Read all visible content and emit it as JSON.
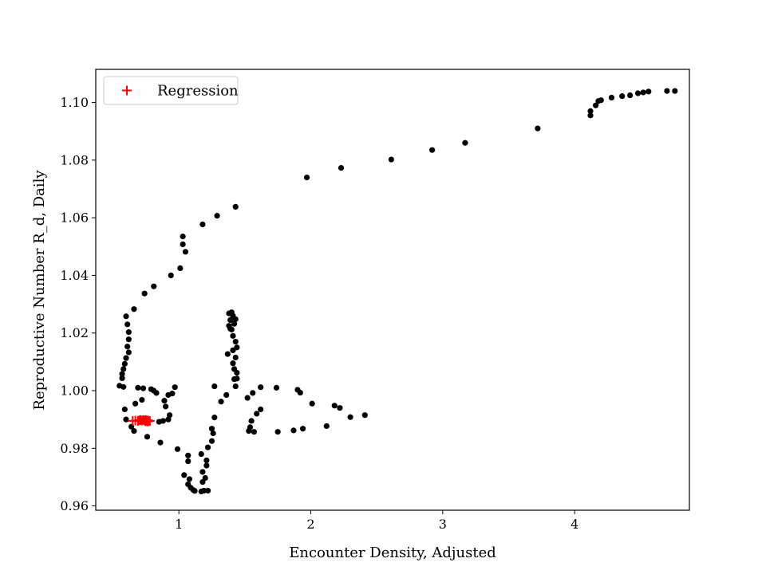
{
  "chart_data": {
    "type": "scatter",
    "title": "",
    "xlabel": "Encounter Density, Adjusted",
    "ylabel": "Reproductive Number R_d, Daily",
    "xlim": [
      0.37,
      4.87
    ],
    "ylim": [
      0.9585,
      1.1115
    ],
    "xticks": [
      1,
      2,
      3,
      4
    ],
    "yticks": [
      0.96,
      0.98,
      1.0,
      1.02,
      1.04,
      1.06,
      1.08,
      1.1
    ],
    "ytick_format": 2,
    "grid": false,
    "legend": {
      "position": "top-left",
      "entries": [
        {
          "label": "Regression",
          "marker": "plus",
          "color": "#ff0000"
        }
      ]
    },
    "series": [
      {
        "marker": "dot",
        "color": "#000000",
        "points": [
          [
            4.76,
            1.104
          ],
          [
            4.7,
            1.104
          ],
          [
            4.56,
            1.1038
          ],
          [
            4.52,
            1.1035
          ],
          [
            4.48,
            1.1032
          ],
          [
            4.42,
            1.1025
          ],
          [
            4.36,
            1.1022
          ],
          [
            4.28,
            1.1017
          ],
          [
            4.2,
            1.1008
          ],
          [
            4.18,
            1.1005
          ],
          [
            4.16,
            1.099
          ],
          [
            4.12,
            1.097
          ],
          [
            4.12,
            1.0955
          ],
          [
            3.72,
            1.091
          ],
          [
            3.17,
            1.086
          ],
          [
            2.92,
            1.0835
          ],
          [
            2.61,
            1.0802
          ],
          [
            2.23,
            1.0773
          ],
          [
            1.97,
            1.074
          ],
          [
            1.43,
            1.0638
          ],
          [
            1.29,
            1.0607
          ],
          [
            1.18,
            1.0577
          ],
          [
            1.03,
            1.0535
          ],
          [
            1.03,
            1.0508
          ],
          [
            1.05,
            1.0482
          ],
          [
            1.01,
            1.0425
          ],
          [
            0.94,
            1.04
          ],
          [
            0.81,
            1.0362
          ],
          [
            0.74,
            1.0337
          ],
          [
            0.66,
            1.0283
          ],
          [
            0.6,
            1.0258
          ],
          [
            0.61,
            1.023
          ],
          [
            0.62,
            1.0203
          ],
          [
            0.62,
            1.0178
          ],
          [
            0.61,
            1.0153
          ],
          [
            0.62,
            1.0133
          ],
          [
            0.6,
            1.0113
          ],
          [
            0.59,
            1.0093
          ],
          [
            0.58,
            1.0075
          ],
          [
            0.57,
            1.0058
          ],
          [
            0.57,
            1.0043
          ],
          [
            0.55,
            1.0017
          ],
          [
            0.58,
            1.0013
          ],
          [
            0.59,
            0.9935
          ],
          [
            0.6,
            0.99
          ],
          [
            0.64,
            0.9875
          ],
          [
            0.66,
            0.986
          ],
          [
            0.67,
            0.9955
          ],
          [
            0.72,
            0.9968
          ],
          [
            0.69,
            1.001
          ],
          [
            0.73,
            1.0008
          ],
          [
            0.79,
            1.0005
          ],
          [
            0.81,
            1.0
          ],
          [
            0.83,
            0.9992
          ],
          [
            0.85,
            0.9892
          ],
          [
            0.88,
            0.9895
          ],
          [
            0.92,
            0.99
          ],
          [
            0.93,
            0.9915
          ],
          [
            0.9,
            0.9945
          ],
          [
            0.89,
            0.9965
          ],
          [
            0.92,
            0.9985
          ],
          [
            0.95,
            0.999
          ],
          [
            0.97,
            1.0012
          ],
          [
            0.76,
            0.984
          ],
          [
            0.86,
            0.982
          ],
          [
            0.99,
            0.9797
          ],
          [
            1.07,
            0.9775
          ],
          [
            1.07,
            0.9755
          ],
          [
            1.04,
            0.9707
          ],
          [
            1.08,
            0.9693
          ],
          [
            1.07,
            0.9675
          ],
          [
            1.09,
            0.9663
          ],
          [
            1.11,
            0.9655
          ],
          [
            1.12,
            0.9652
          ],
          [
            1.17,
            0.965
          ],
          [
            1.19,
            0.9653
          ],
          [
            1.22,
            0.9653
          ],
          [
            1.18,
            0.9683
          ],
          [
            1.2,
            0.9697
          ],
          [
            1.18,
            0.9718
          ],
          [
            1.21,
            0.974
          ],
          [
            1.21,
            0.9758
          ],
          [
            1.17,
            0.978
          ],
          [
            1.22,
            0.9803
          ],
          [
            1.25,
            0.9825
          ],
          [
            1.26,
            0.9852
          ],
          [
            1.25,
            0.9868
          ],
          [
            1.27,
            0.9907
          ],
          [
            1.27,
            1.0015
          ],
          [
            1.32,
            0.9962
          ],
          [
            1.36,
            0.9985
          ],
          [
            1.37,
            1.0127
          ],
          [
            1.39,
            1.0215
          ],
          [
            1.38,
            1.0225
          ],
          [
            1.39,
            1.0245
          ],
          [
            1.38,
            1.0268
          ],
          [
            1.4,
            1.0272
          ],
          [
            1.41,
            1.026
          ],
          [
            1.43,
            1.0248
          ],
          [
            1.42,
            1.0232
          ],
          [
            1.4,
            1.0212
          ],
          [
            1.41,
            1.019
          ],
          [
            1.43,
            1.017
          ],
          [
            1.44,
            1.015
          ],
          [
            1.41,
            1.014
          ],
          [
            1.43,
            1.0115
          ],
          [
            1.41,
            1.0095
          ],
          [
            1.42,
            1.0075
          ],
          [
            1.44,
            1.0062
          ],
          [
            1.42,
            1.004
          ],
          [
            1.44,
            1.0042
          ],
          [
            1.43,
            1.0015
          ],
          [
            1.62,
            1.0012
          ],
          [
            1.74,
            1.001
          ],
          [
            1.9,
            1.0003
          ],
          [
            1.92,
            0.9993
          ],
          [
            1.52,
            0.9975
          ],
          [
            1.56,
            0.9992
          ],
          [
            1.62,
            0.9935
          ],
          [
            1.59,
            0.992
          ],
          [
            1.55,
            0.9895
          ],
          [
            1.54,
            0.9873
          ],
          [
            1.53,
            0.986
          ],
          [
            1.57,
            0.9857
          ],
          [
            1.75,
            0.9857
          ],
          [
            1.87,
            0.9862
          ],
          [
            1.94,
            0.9868
          ],
          [
            2.12,
            0.9877
          ],
          [
            2.01,
            0.9955
          ],
          [
            2.18,
            0.9948
          ],
          [
            2.22,
            0.994
          ],
          [
            2.3,
            0.9908
          ],
          [
            2.41,
            0.9915
          ]
        ]
      },
      {
        "name": "Regression",
        "marker": "plus",
        "color": "#ff0000",
        "points": [
          [
            0.65,
            0.9895
          ],
          [
            0.67,
            0.9896
          ],
          [
            0.69,
            0.9895
          ],
          [
            0.7,
            0.9897
          ],
          [
            0.71,
            0.9898
          ],
          [
            0.72,
            0.9896
          ],
          [
            0.73,
            0.9898
          ],
          [
            0.74,
            0.9897
          ],
          [
            0.745,
            0.9894
          ],
          [
            0.75,
            0.9898
          ],
          [
            0.755,
            0.9895
          ],
          [
            0.76,
            0.9893
          ],
          [
            0.765,
            0.9897
          ],
          [
            0.77,
            0.9894
          ],
          [
            0.78,
            0.9895
          ]
        ]
      }
    ]
  }
}
